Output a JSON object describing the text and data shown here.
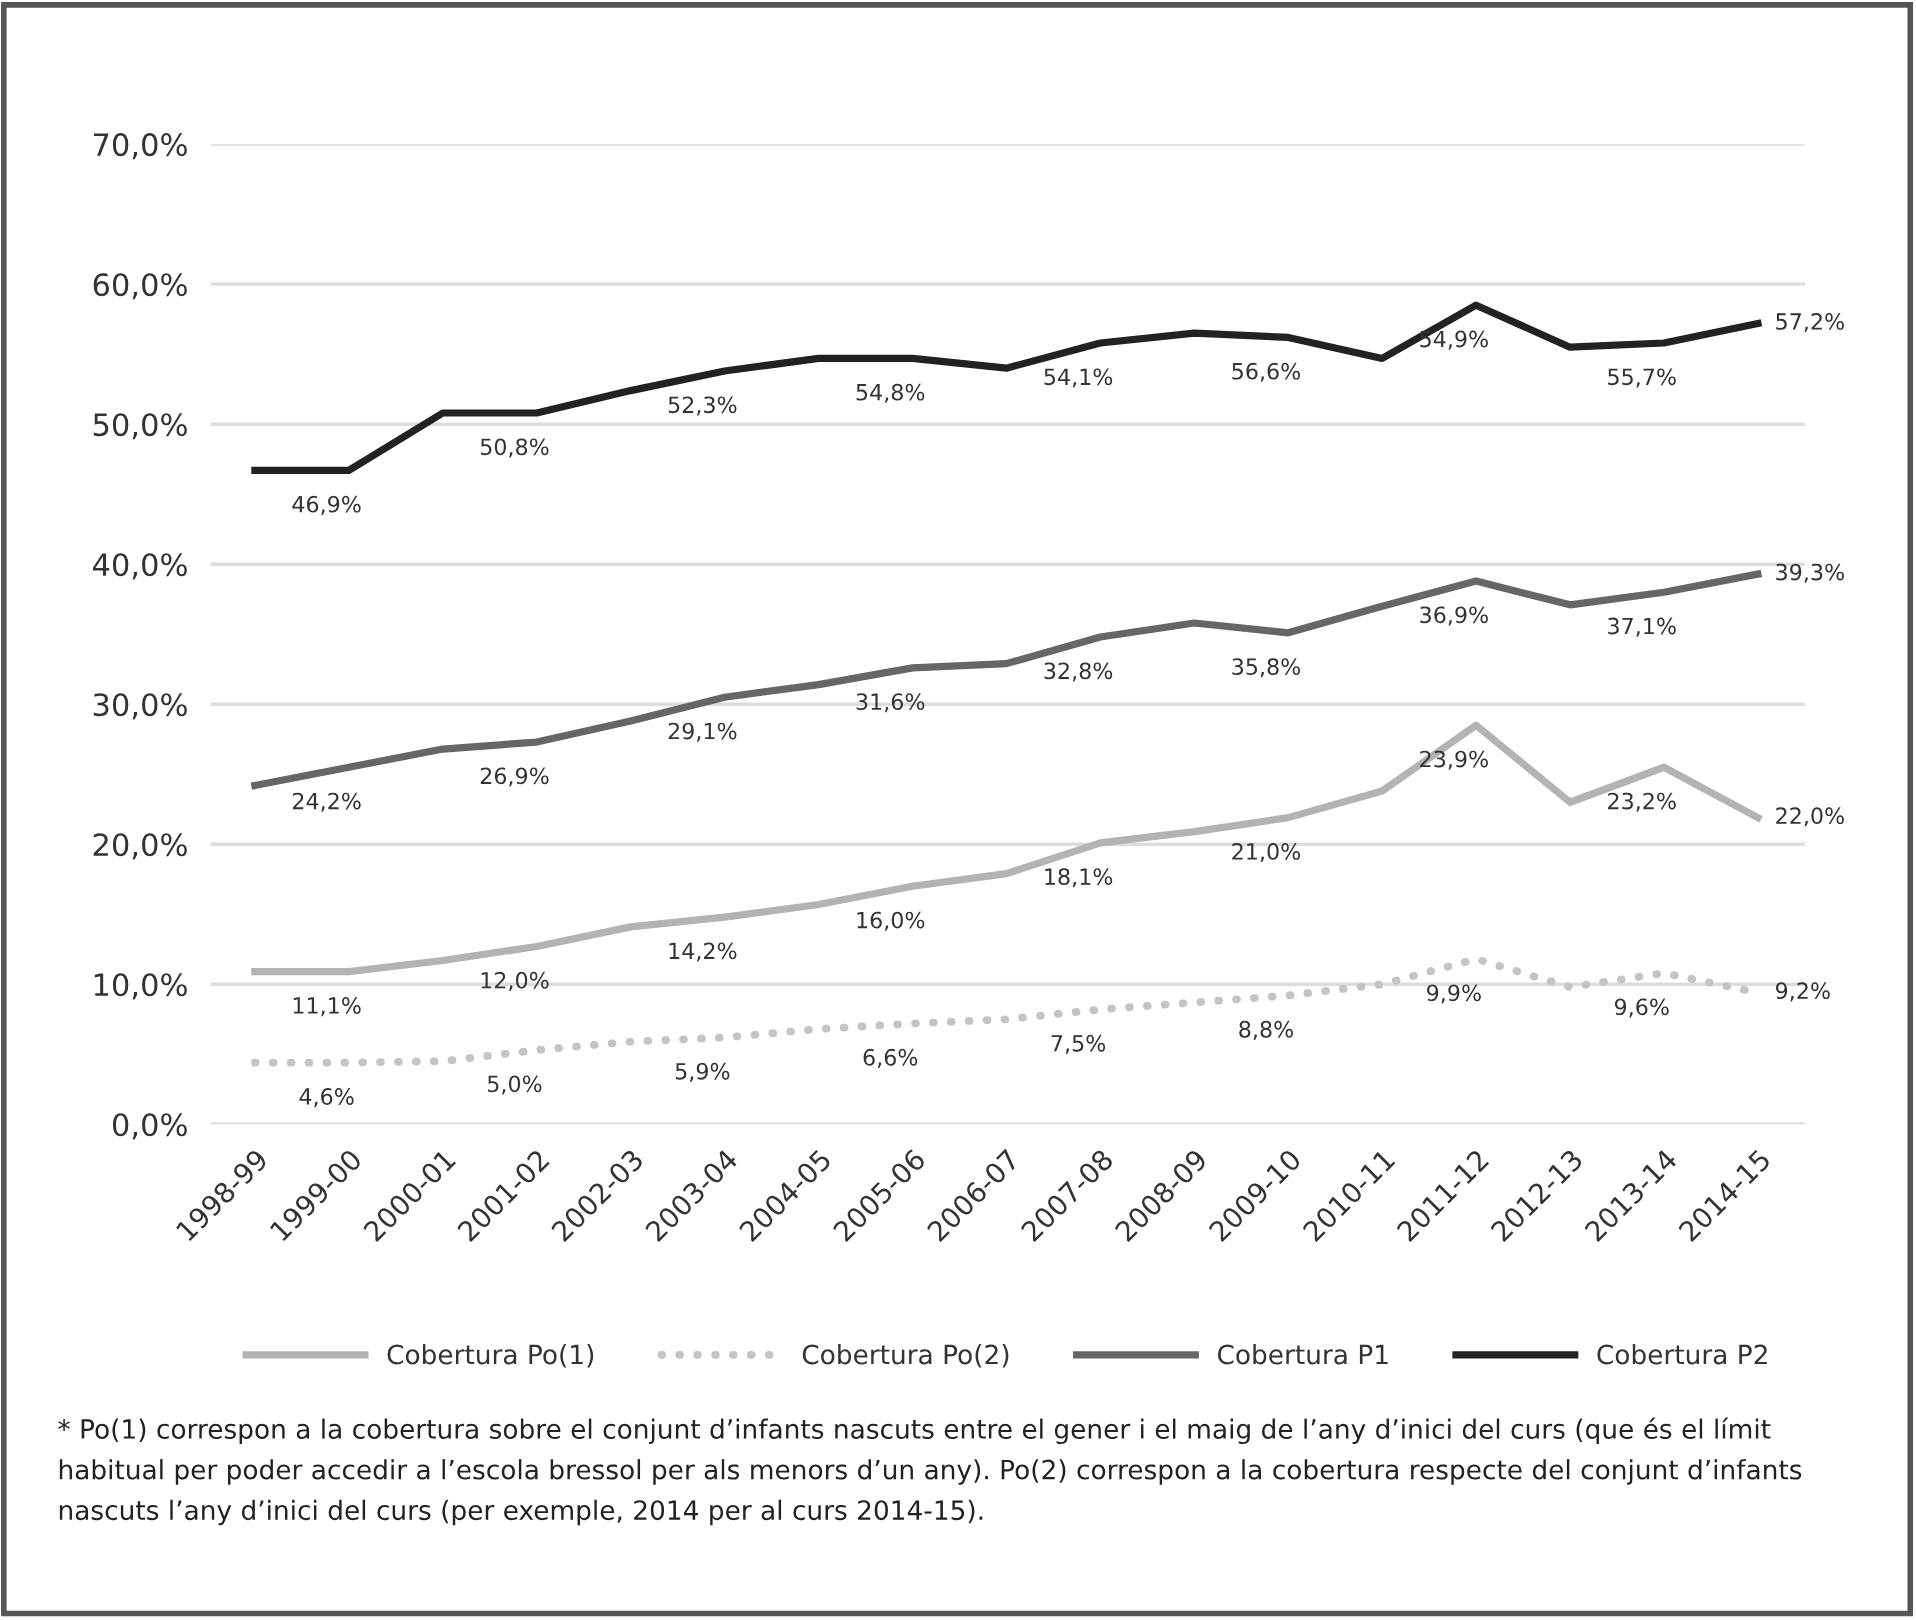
{
  "chart_data": {
    "type": "line",
    "categories": [
      "1998-99",
      "1999-00",
      "2000-01",
      "2001-02",
      "2002-03",
      "2003-04",
      "2004-05",
      "2005-06",
      "2006-07",
      "2007-08",
      "2008-09",
      "2009-10",
      "2010-11",
      "2011-12",
      "2012-13",
      "2013-14",
      "2014-15"
    ],
    "series": [
      {
        "name": "Cobertura Po(1)",
        "color": "#b3b3b3",
        "line_style": "solid",
        "values": [
          10.9,
          10.9,
          11.7,
          12.7,
          14.1,
          14.8,
          15.7,
          17.0,
          17.9,
          20.1,
          20.9,
          21.9,
          23.8,
          28.5,
          23.0,
          25.5,
          21.9
        ]
      },
      {
        "name": "Cobertura Po(2)",
        "color": "#c4c4c4",
        "line_style": "dotted",
        "values": [
          4.4,
          4.4,
          4.5,
          5.3,
          5.9,
          6.2,
          6.8,
          7.2,
          7.5,
          8.2,
          8.7,
          9.2,
          10.0,
          11.8,
          9.8,
          10.8,
          9.4
        ]
      },
      {
        "name": "Cobertura P1",
        "color": "#666666",
        "line_style": "solid",
        "values": [
          24.2,
          25.5,
          26.8,
          27.3,
          28.8,
          30.5,
          31.4,
          32.6,
          32.9,
          34.8,
          35.8,
          35.1,
          37.0,
          38.8,
          37.1,
          38.0,
          39.3
        ]
      },
      {
        "name": "Cobertura P2",
        "color": "#222222",
        "line_style": "solid",
        "values": [
          46.7,
          46.7,
          50.8,
          50.8,
          52.4,
          53.8,
          54.7,
          54.7,
          54.0,
          55.8,
          56.5,
          56.2,
          54.7,
          58.5,
          55.5,
          55.8,
          57.2
        ]
      }
    ],
    "ylim": [
      0,
      70
    ],
    "yticks": [
      {
        "value": 0,
        "label": "0,0%"
      },
      {
        "value": 10,
        "label": "10,0%"
      },
      {
        "value": 20,
        "label": "20,0%"
      },
      {
        "value": 30,
        "label": "30,0%"
      },
      {
        "value": 40,
        "label": "40,0%"
      },
      {
        "value": 50,
        "label": "50,0%"
      },
      {
        "value": 60,
        "label": "60,0%"
      },
      {
        "value": 70,
        "label": "70,0%"
      }
    ],
    "grid": "y",
    "legend": "bottom",
    "marker": "none",
    "annotations": [
      {
        "text": "46,9%",
        "x": "1999-00",
        "y": 46.7
      },
      {
        "text": "50,8%",
        "x": "2001-02",
        "y": 50.8
      },
      {
        "text": "52,3%",
        "x": "2003-04",
        "y": 53.8
      },
      {
        "text": "54,8%",
        "x": "2005-06",
        "y": 54.7
      },
      {
        "text": "54,1%",
        "x": "2007-08",
        "y": 55.8
      },
      {
        "text": "56,6%",
        "x": "2009-10",
        "y": 56.2
      },
      {
        "text": "54,9%",
        "x": "2011-12",
        "y": 58.5
      },
      {
        "text": "55,7%",
        "x": "2013-14",
        "y": 55.8
      },
      {
        "text": "57,2%",
        "x": "2014-15",
        "y": 57.2
      },
      {
        "text": "24,2%",
        "x": "1999-00",
        "y": 25.5
      },
      {
        "text": "26,9%",
        "x": "2001-02",
        "y": 27.3
      },
      {
        "text": "29,1%",
        "x": "2003-04",
        "y": 30.5
      },
      {
        "text": "31,6%",
        "x": "2005-06",
        "y": 32.6
      },
      {
        "text": "32,8%",
        "x": "2007-08",
        "y": 34.8
      },
      {
        "text": "35,8%",
        "x": "2009-10",
        "y": 35.1
      },
      {
        "text": "36,9%",
        "x": "2011-12",
        "y": 38.8
      },
      {
        "text": "37,1%",
        "x": "2013-14",
        "y": 38.0
      },
      {
        "text": "39,3%",
        "x": "2014-15",
        "y": 39.3
      },
      {
        "text": "11,1%",
        "x": "1999-00",
        "y": 10.9
      },
      {
        "text": "12,0%",
        "x": "2001-02",
        "y": 12.7
      },
      {
        "text": "14,2%",
        "x": "2003-04",
        "y": 14.8
      },
      {
        "text": "16,0%",
        "x": "2005-06",
        "y": 17.0
      },
      {
        "text": "18,1%",
        "x": "2007-08",
        "y": 20.1
      },
      {
        "text": "21,0%",
        "x": "2009-10",
        "y": 21.9
      },
      {
        "text": "23,9%",
        "x": "2011-12",
        "y": 28.5
      },
      {
        "text": "23,2%",
        "x": "2013-14",
        "y": 25.5
      },
      {
        "text": "22,0%",
        "x": "2014-15",
        "y": 21.9
      },
      {
        "text": "4,6%",
        "x": "1999-00",
        "y": 4.4
      },
      {
        "text": "5,0%",
        "x": "2001-02",
        "y": 5.3
      },
      {
        "text": "5,9%",
        "x": "2003-04",
        "y": 6.2
      },
      {
        "text": "6,6%",
        "x": "2005-06",
        "y": 7.2
      },
      {
        "text": "7,5%",
        "x": "2007-08",
        "y": 8.2
      },
      {
        "text": "8,8%",
        "x": "2009-10",
        "y": 9.2
      },
      {
        "text": "9,9%",
        "x": "2011-12",
        "y": 11.8
      },
      {
        "text": "9,6%",
        "x": "2013-14",
        "y": 10.8
      },
      {
        "text": "9,2%",
        "x": "2014-15",
        "y": 9.4
      },
      "* Po(1) correspon a la cobertura sobre el conjunt d’infants nascuts entre el gener i el maig de l’any d’inici del curs (que és el límit habitual per poder accedir a l’escola bressol per als menors d’un any). Po(2) correspon a la cobertura respecte del conjunt d’infants nascuts l’any d’inici del curs (per exemple, 2014 per al curs 2014-15)."
    ]
  }
}
